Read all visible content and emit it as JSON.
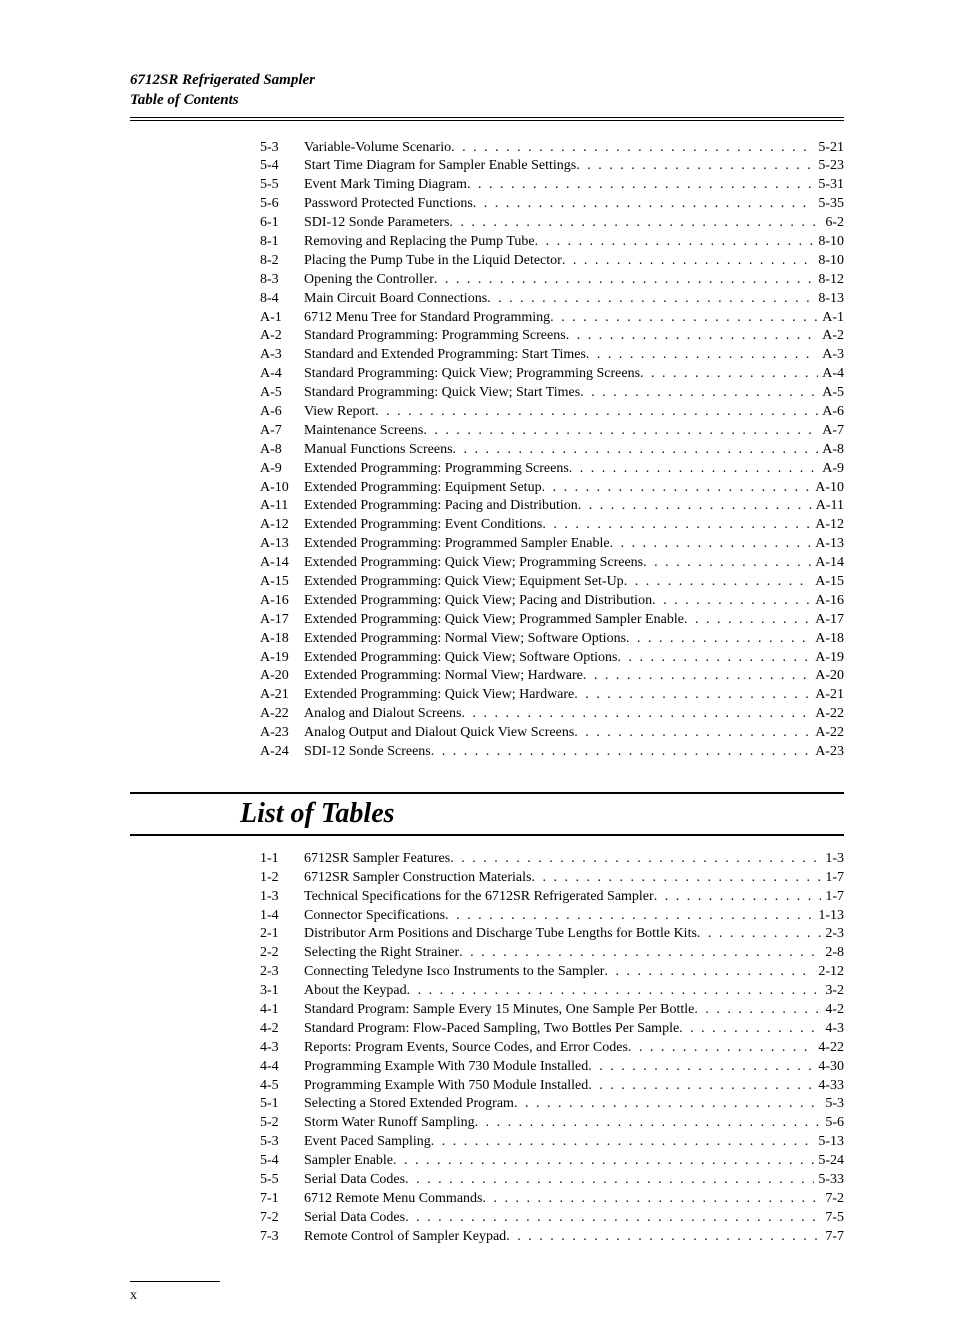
{
  "header": {
    "line1": "6712SR Refrigerated Sampler",
    "line2": "Table of Contents"
  },
  "figures": [
    {
      "num": "5-3",
      "title": "Variable-Volume Scenario",
      "page": "5-21"
    },
    {
      "num": "5-4",
      "title": "Start Time Diagram for Sampler Enable Settings",
      "page": "5-23"
    },
    {
      "num": "5-5",
      "title": "Event Mark Timing Diagram",
      "page": "5-31"
    },
    {
      "num": "5-6",
      "title": "Password Protected Functions",
      "page": "5-35"
    },
    {
      "num": "6-1",
      "title": "SDI-12 Sonde Parameters",
      "page": "6-2"
    },
    {
      "num": "8-1",
      "title": "Removing and Replacing the Pump Tube",
      "page": "8-10"
    },
    {
      "num": "8-2",
      "title": "Placing the Pump Tube in the Liquid Detector",
      "page": "8-10"
    },
    {
      "num": "8-3",
      "title": "Opening the Controller",
      "page": "8-12"
    },
    {
      "num": "8-4",
      "title": "Main Circuit Board Connections",
      "page": "8-13"
    },
    {
      "num": "A-1",
      "title": "6712 Menu Tree for Standard Programming",
      "page": "A-1"
    },
    {
      "num": "A-2",
      "title": "Standard Programming: Programming Screens",
      "page": "A-2"
    },
    {
      "num": "A-3",
      "title": "Standard and Extended Programming: Start Times",
      "page": "A-3"
    },
    {
      "num": "A-4",
      "title": "Standard Programming: Quick View; Programming Screens",
      "page": "A-4"
    },
    {
      "num": "A-5",
      "title": "Standard Programming: Quick View; Start Times",
      "page": "A-5"
    },
    {
      "num": "A-6",
      "title": "View Report",
      "page": "A-6"
    },
    {
      "num": "A-7",
      "title": "Maintenance Screens",
      "page": "A-7"
    },
    {
      "num": "A-8",
      "title": "Manual Functions Screens",
      "page": "A-8"
    },
    {
      "num": "A-9",
      "title": "Extended Programming: Programming Screens",
      "page": "A-9"
    },
    {
      "num": "A-10",
      "title": "Extended Programming: Equipment Setup",
      "page": "A-10"
    },
    {
      "num": "A-11",
      "title": "Extended Programming: Pacing and Distribution",
      "page": "A-11"
    },
    {
      "num": "A-12",
      "title": "Extended Programming: Event Conditions",
      "page": "A-12"
    },
    {
      "num": "A-13",
      "title": "Extended Programming: Programmed Sampler Enable",
      "page": "A-13"
    },
    {
      "num": "A-14",
      "title": "Extended Programming: Quick View; Programming Screens",
      "page": "A-14"
    },
    {
      "num": "A-15",
      "title": "Extended Programming: Quick View; Equipment Set-Up",
      "page": "A-15"
    },
    {
      "num": "A-16",
      "title": "Extended Programming: Quick View; Pacing and Distribution",
      "page": "A-16"
    },
    {
      "num": "A-17",
      "title": "Extended Programming: Quick View; Programmed Sampler Enable",
      "page": "A-17"
    },
    {
      "num": "A-18",
      "title": "Extended Programming: Normal View; Software Options",
      "page": "A-18"
    },
    {
      "num": "A-19",
      "title": "Extended Programming: Quick View; Software Options",
      "page": "A-19"
    },
    {
      "num": "A-20",
      "title": "Extended Programming: Normal View; Hardware",
      "page": "A-20"
    },
    {
      "num": "A-21",
      "title": "Extended Programming: Quick View; Hardware",
      "page": "A-21"
    },
    {
      "num": "A-22",
      "title": "Analog and Dialout Screens",
      "page": "A-22"
    },
    {
      "num": "A-23",
      "title": "Analog Output and Dialout Quick View Screens",
      "page": "A-22"
    },
    {
      "num": "A-24",
      "title": "SDI-12 Sonde Screens",
      "page": "A-23"
    }
  ],
  "tables_heading": "List of Tables",
  "tables": [
    {
      "num": "1-1",
      "title": "6712SR Sampler Features",
      "page": "1-3"
    },
    {
      "num": "1-2",
      "title": "6712SR Sampler Construction Materials",
      "page": "1-7"
    },
    {
      "num": "1-3",
      "title": "Technical Specifications for the 6712SR Refrigerated Sampler",
      "page": "1-7"
    },
    {
      "num": "1-4",
      "title": "Connector Specifications",
      "page": "1-13"
    },
    {
      "num": "2-1",
      "title": "Distributor Arm Positions and Discharge Tube Lengths for Bottle Kits",
      "page": "2-3"
    },
    {
      "num": "2-2",
      "title": "Selecting the Right Strainer",
      "page": "2-8"
    },
    {
      "num": "2-3",
      "title": "Connecting Teledyne Isco Instruments to the Sampler",
      "page": "2-12"
    },
    {
      "num": "3-1",
      "title": "About the Keypad",
      "page": "3-2"
    },
    {
      "num": "4-1",
      "title": "Standard Program: Sample Every 15 Minutes, One Sample Per Bottle",
      "page": "4-2"
    },
    {
      "num": "4-2",
      "title": "Standard Program: Flow-Paced Sampling, Two Bottles Per Sample",
      "page": "4-3"
    },
    {
      "num": "4-3",
      "title": "Reports: Program Events, Source Codes, and Error Codes",
      "page": "4-22"
    },
    {
      "num": "4-4",
      "title": "Programming Example With 730 Module Installed",
      "page": "4-30"
    },
    {
      "num": "4-5",
      "title": "Programming Example With 750 Module Installed",
      "page": "4-33"
    },
    {
      "num": "5-1",
      "title": "Selecting a Stored Extended Program",
      "page": "5-3"
    },
    {
      "num": "5-2",
      "title": "Storm Water Runoff Sampling",
      "page": "5-6"
    },
    {
      "num": "5-3",
      "title": "Event Paced Sampling",
      "page": "5-13"
    },
    {
      "num": "5-4",
      "title": "Sampler Enable",
      "page": "5-24"
    },
    {
      "num": "5-5",
      "title": "Serial Data Codes",
      "page": "5-33"
    },
    {
      "num": "7-1",
      "title": "6712 Remote Menu Commands",
      "page": "7-2"
    },
    {
      "num": "7-2",
      "title": "Serial Data Codes",
      "page": "7-5"
    },
    {
      "num": "7-3",
      "title": "Remote Control of Sampler Keypad",
      "page": "7-7"
    }
  ],
  "pagenum": "x"
}
